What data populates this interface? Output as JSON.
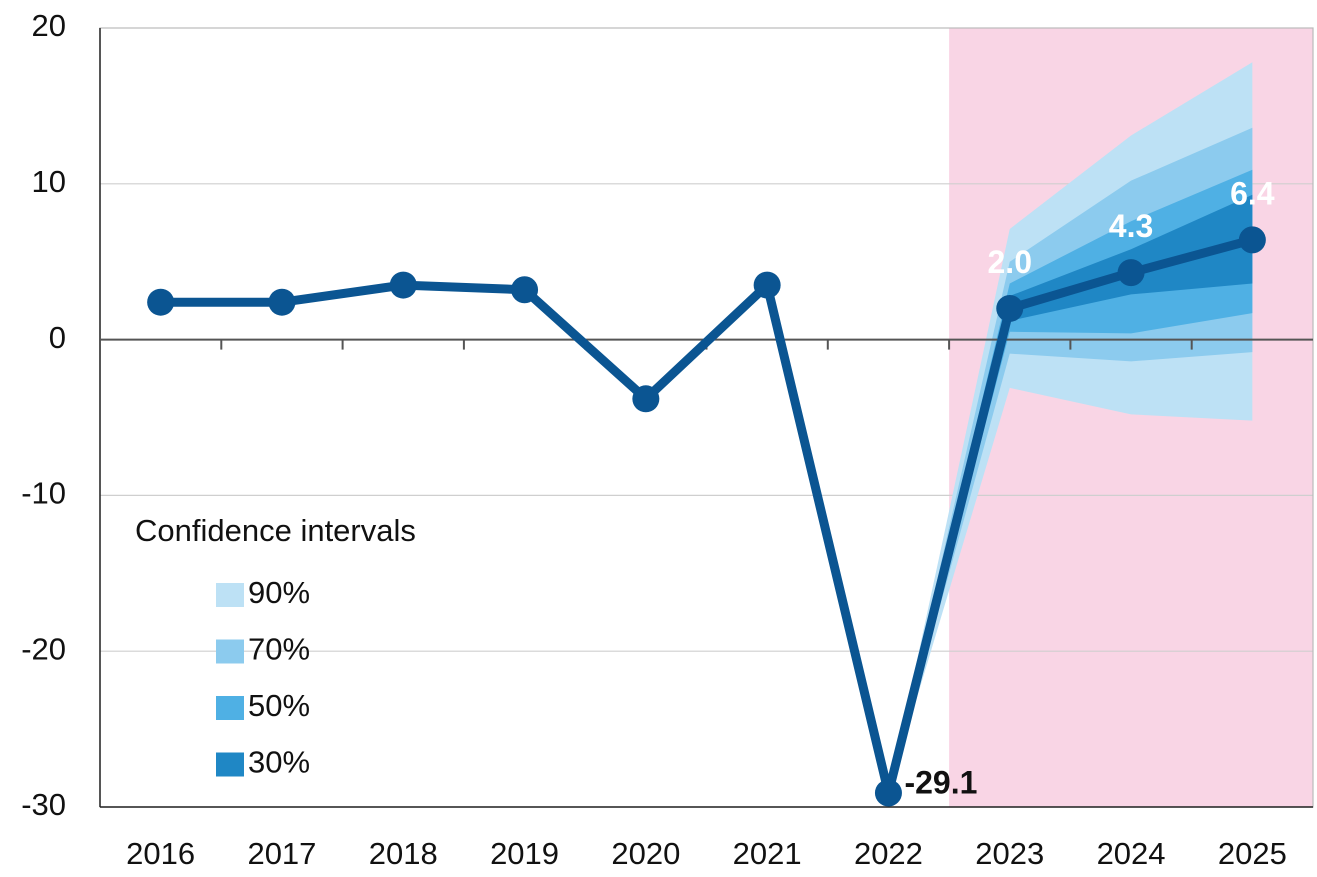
{
  "chart_data": {
    "type": "fan",
    "categories": [
      "2016",
      "2017",
      "2018",
      "2019",
      "2020",
      "2021",
      "2022",
      "2023",
      "2024",
      "2025"
    ],
    "series": [
      {
        "name": null,
        "color": "#0b5592",
        "values": [
          2.4,
          2.4,
          3.5,
          3.2,
          -3.8,
          3.5,
          -29.1,
          2.0,
          4.3,
          6.4
        ],
        "value_labels": [
          null,
          null,
          null,
          null,
          null,
          null,
          "-29.1",
          "2.0",
          "4.3",
          "6.4"
        ]
      }
    ],
    "bands": [
      {
        "name": "90%",
        "color": "#bde1f5",
        "lower": [
          null,
          null,
          null,
          null,
          null,
          null,
          -29.1,
          -3.1,
          -4.8,
          -5.2
        ],
        "upper": [
          null,
          null,
          null,
          null,
          null,
          null,
          -29.1,
          7.1,
          13.1,
          17.8
        ]
      },
      {
        "name": "70%",
        "color": "#8ccbee",
        "lower": [
          null,
          null,
          null,
          null,
          null,
          null,
          -29.1,
          -0.9,
          -1.4,
          -0.8
        ],
        "upper": [
          null,
          null,
          null,
          null,
          null,
          null,
          -29.1,
          5.0,
          10.2,
          13.6
        ]
      },
      {
        "name": "50%",
        "color": "#4fb0e4",
        "lower": [
          null,
          null,
          null,
          null,
          null,
          null,
          -29.1,
          0.5,
          0.4,
          1.7
        ],
        "upper": [
          null,
          null,
          null,
          null,
          null,
          null,
          -29.1,
          3.6,
          7.6,
          10.9
        ]
      },
      {
        "name": "30%",
        "color": "#1f87c5",
        "lower": [
          null,
          null,
          null,
          null,
          null,
          null,
          -29.1,
          1.2,
          2.9,
          3.6
        ],
        "upper": [
          null,
          null,
          null,
          null,
          null,
          null,
          -29.1,
          2.8,
          5.8,
          9.3
        ]
      }
    ],
    "legend_title": "Confidence intervals",
    "legend": "lower left",
    "forecast_shading": "#f9d5e5",
    "ylim": [
      -30,
      20
    ],
    "yticks": [
      -30,
      -20,
      -10,
      0,
      10,
      20
    ],
    "grid": true
  }
}
